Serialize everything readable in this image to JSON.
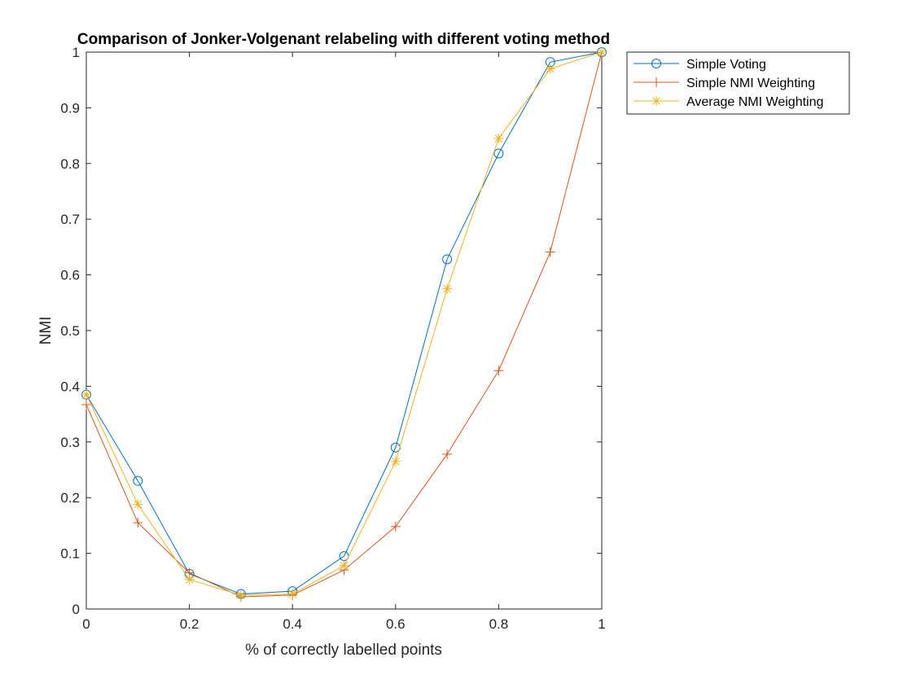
{
  "chart_data": {
    "type": "line",
    "title": "Comparison of Jonker-Volgenant relabeling with different voting method",
    "xlabel": "% of correctly labelled points",
    "ylabel": "NMI",
    "xlim": [
      0,
      1
    ],
    "ylim": [
      0,
      1
    ],
    "xticks": [
      0,
      0.2,
      0.4,
      0.6,
      0.8,
      1
    ],
    "yticks": [
      0,
      0.1,
      0.2,
      0.3,
      0.4,
      0.5,
      0.6,
      0.7,
      0.8,
      0.9,
      1
    ],
    "xtick_labels": [
      "0",
      "0.2",
      "0.4",
      "0.6",
      "0.8",
      "1"
    ],
    "ytick_labels": [
      "0",
      "0.1",
      "0.2",
      "0.3",
      "0.4",
      "0.5",
      "0.6",
      "0.7",
      "0.8",
      "0.9",
      "1"
    ],
    "grid": false,
    "legend_position": "outside-top-right",
    "x": [
      0,
      0.1,
      0.2,
      0.3,
      0.4,
      0.5,
      0.6,
      0.7,
      0.8,
      0.9,
      1
    ],
    "series": [
      {
        "name": "Simple Voting",
        "color": "#0072BD",
        "marker": "circle",
        "values": [
          0.385,
          0.23,
          0.063,
          0.027,
          0.032,
          0.095,
          0.29,
          0.628,
          0.818,
          0.982,
          1.0
        ]
      },
      {
        "name": "Simple NMI Weighting",
        "color": "#D95319",
        "marker": "plus",
        "values": [
          0.367,
          0.155,
          0.065,
          0.022,
          0.025,
          0.07,
          0.148,
          0.278,
          0.428,
          0.641,
          1.0
        ]
      },
      {
        "name": "Average NMI Weighting",
        "color": "#EDB120",
        "marker": "asterisk",
        "values": [
          0.385,
          0.188,
          0.053,
          0.025,
          0.027,
          0.078,
          0.265,
          0.575,
          0.845,
          0.97,
          1.0
        ]
      }
    ]
  }
}
